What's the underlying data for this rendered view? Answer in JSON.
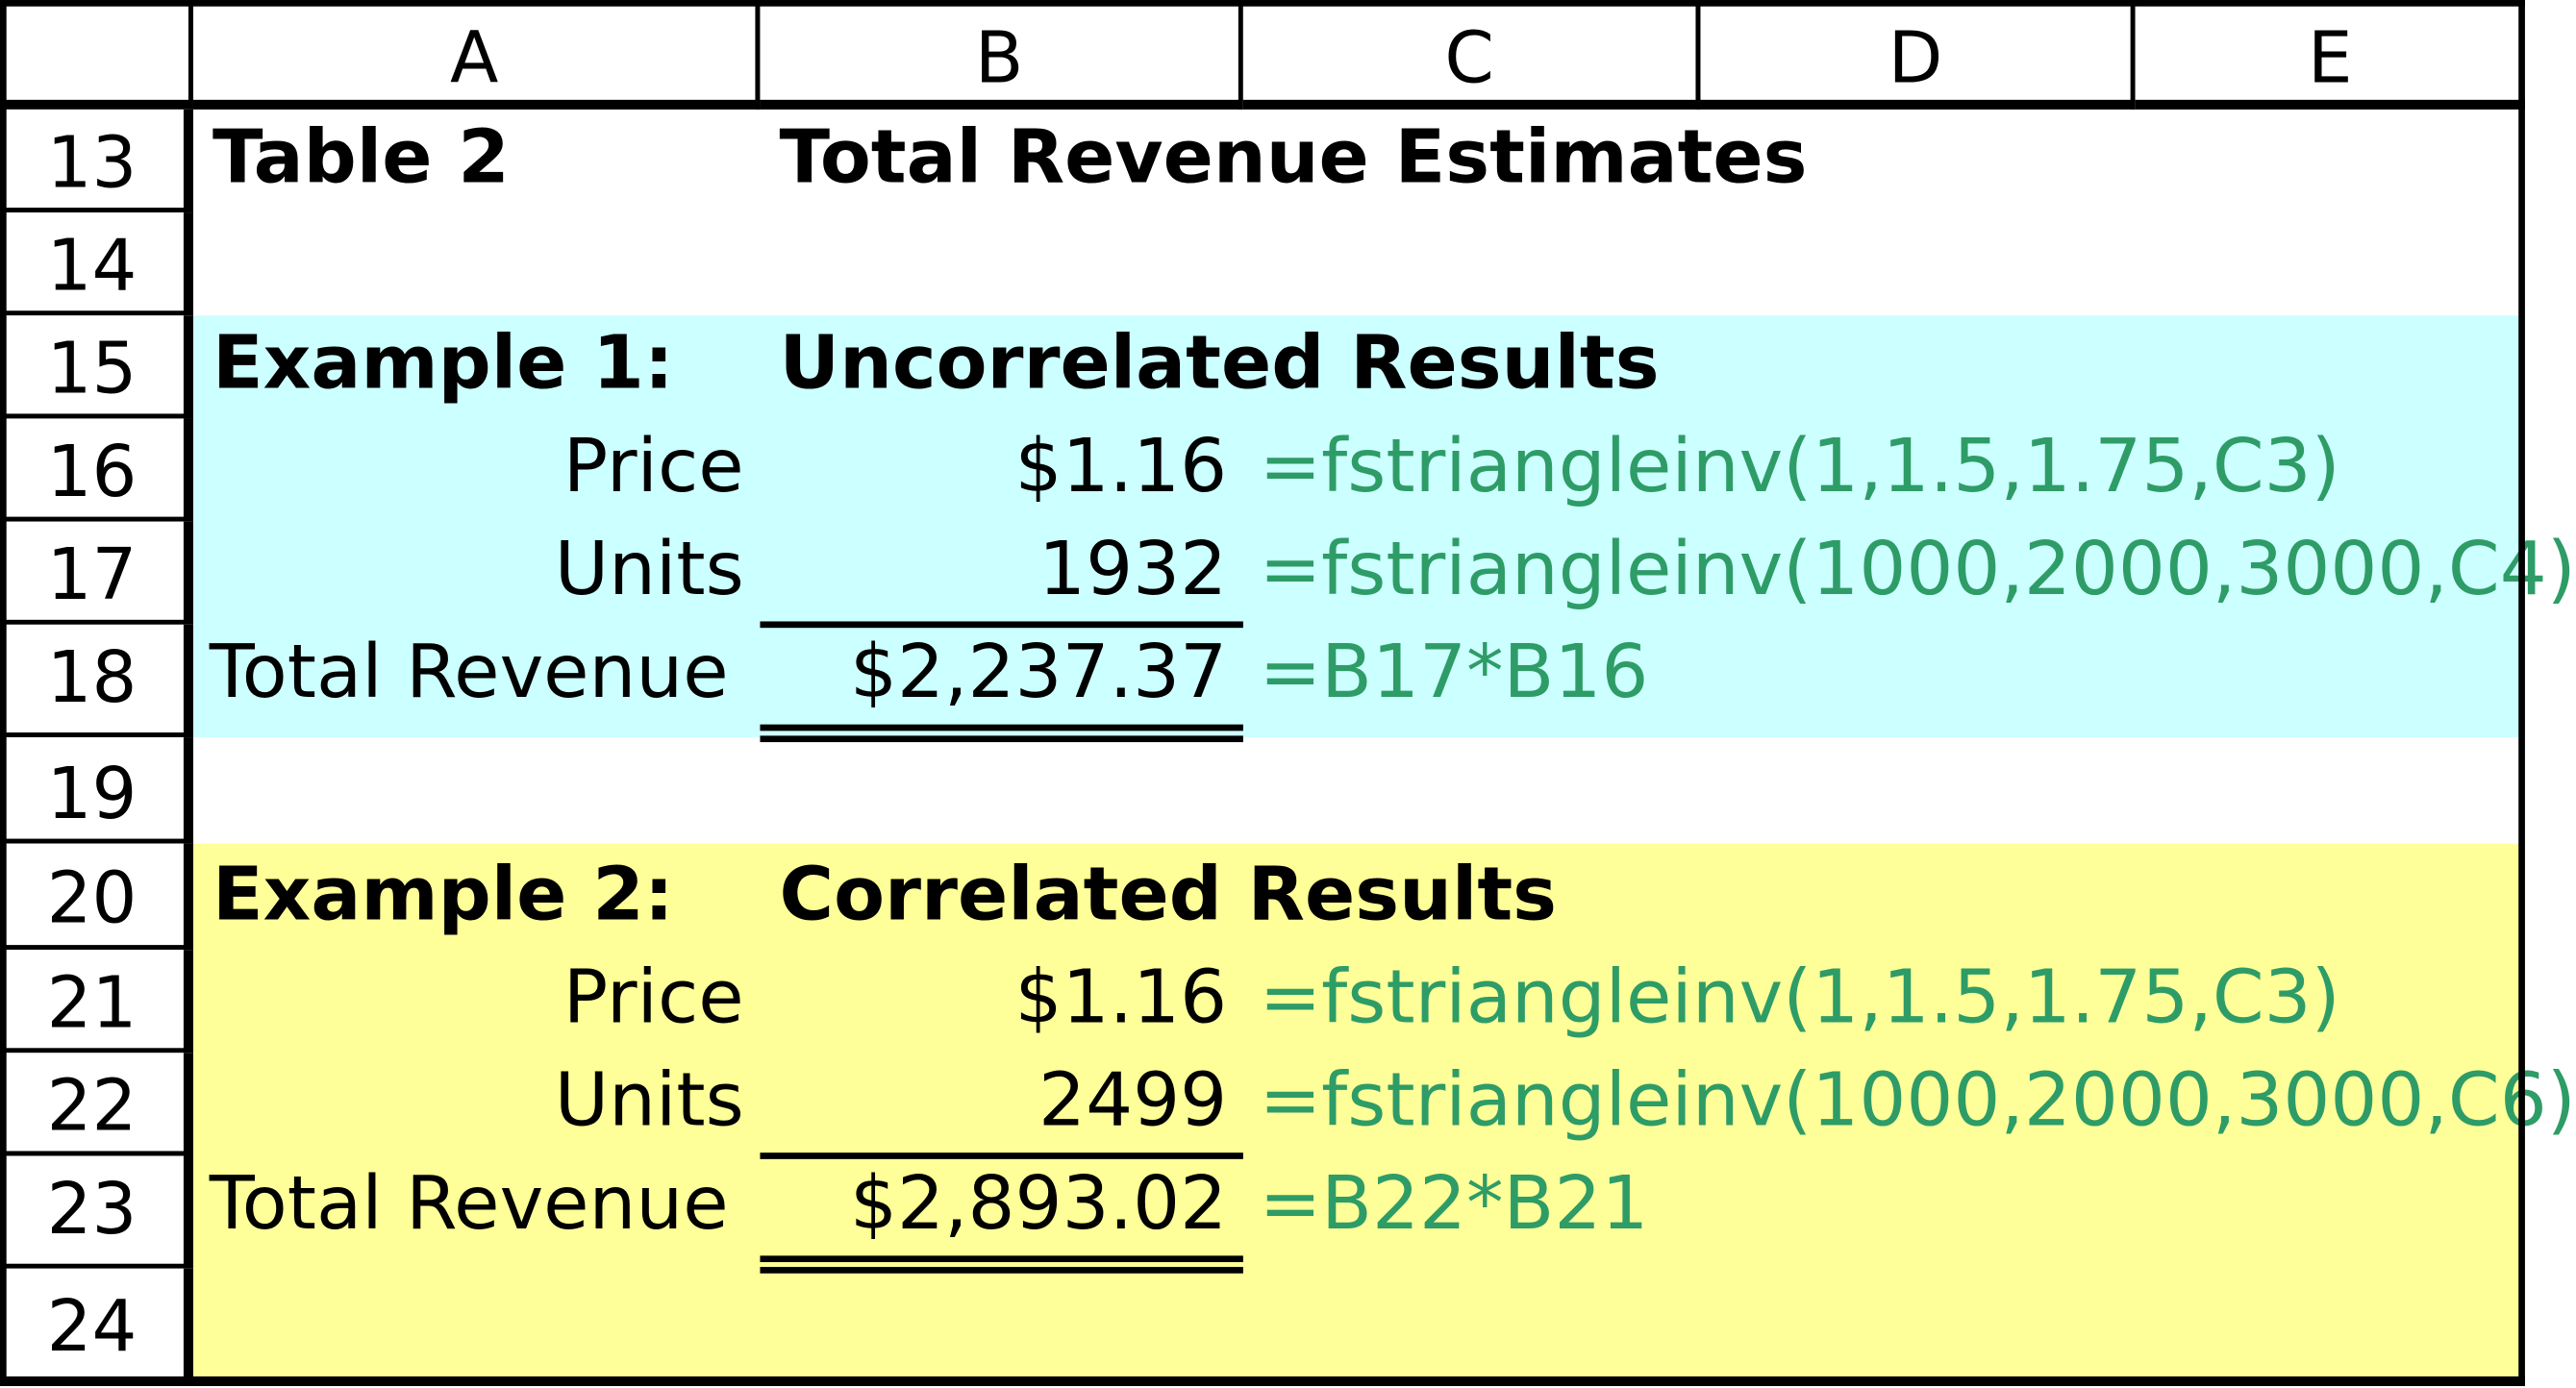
{
  "columns": [
    "A",
    "B",
    "C",
    "D",
    "E"
  ],
  "rows": [
    "13",
    "14",
    "15",
    "16",
    "17",
    "18",
    "19",
    "20",
    "21",
    "22",
    "23",
    "24"
  ],
  "table_title": {
    "label": "Table 2",
    "heading": "Total Revenue Estimates"
  },
  "example1": {
    "label": "Example 1:",
    "heading": "Uncorrelated Results",
    "price_label": "Price",
    "price_value": "$1.16",
    "price_formula": "=fstriangleinv(1,1.5,1.75,C3)",
    "units_label": "Units",
    "units_value": "1932",
    "units_formula": "=fstriangleinv(1000,2000,3000,C4)",
    "total_label": "Total Revenue",
    "total_value": "$2,237.37",
    "total_formula": "=B17*B16"
  },
  "example2": {
    "label": "Example 2:",
    "heading": "Correlated Results",
    "price_label": "Price",
    "price_value": "$1.16",
    "price_formula": "=fstriangleinv(1,1.5,1.75,C3)",
    "units_label": "Units",
    "units_value": "2499",
    "units_formula": "=fstriangleinv(1000,2000,3000,C6)",
    "total_label": "Total Revenue",
    "total_value": "$2,893.02",
    "total_formula": "=B22*B21"
  },
  "colors": {
    "example1_fill": "#ccffff",
    "example2_fill": "#ffff99",
    "formula_text": "#2e9c67"
  }
}
